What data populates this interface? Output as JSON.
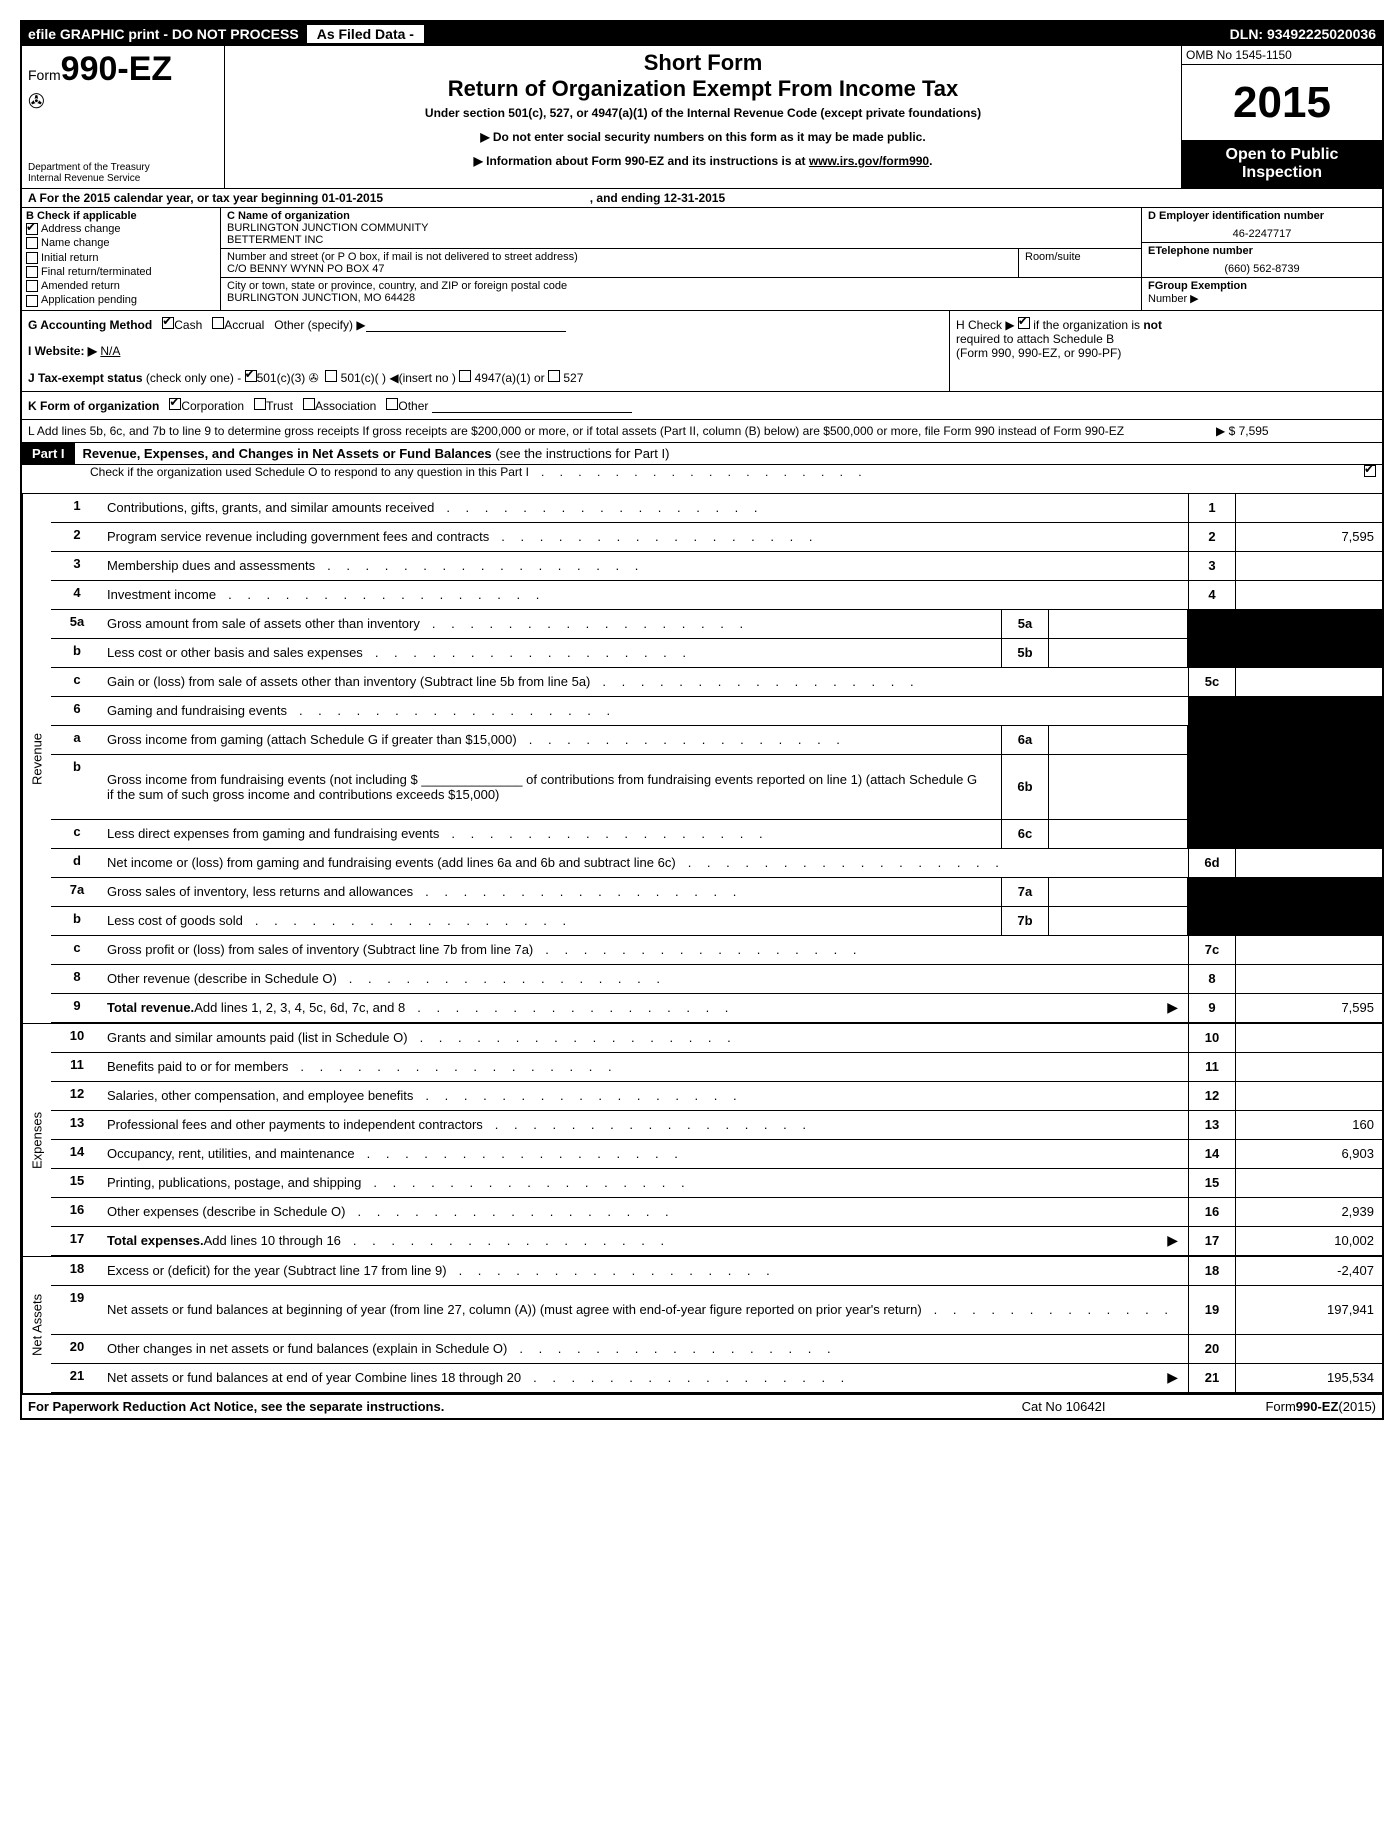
{
  "topbar": {
    "efile": "efile GRAPHIC print - DO NOT PROCESS",
    "asfiled": "As Filed Data -",
    "dln": "DLN: 93492225020036"
  },
  "header": {
    "form_prefix": "Form",
    "form_num": "990-EZ",
    "dept1": "Department of the Treasury",
    "dept2": "Internal Revenue Service",
    "short_form": "Short Form",
    "main_title": "Return of Organization Exempt From Income Tax",
    "under": "Under section 501(c), 527, or 4947(a)(1) of the Internal Revenue Code (except private foundations)",
    "inst1": "▶ Do not enter social security numbers on this form as it may be made public.",
    "inst2_pre": "▶ Information about Form 990-EZ and its instructions is at ",
    "inst2_link": "www.irs.gov/form990",
    "inst2_post": ".",
    "omb": "OMB No 1545-1150",
    "year": "2015",
    "open1": "Open to Public",
    "open2": "Inspection"
  },
  "rowA": {
    "text_pre": "A  For the 2015 calendar year, or tax year beginning ",
    "begin": "01-01-2015",
    "text_mid": " , and ending ",
    "end": "12-31-2015"
  },
  "colB": {
    "header": "B  Check if applicable",
    "items": [
      "Address change",
      "Name change",
      "Initial return",
      "Final return/terminated",
      "Amended return",
      "Application pending"
    ],
    "checked": [
      true,
      false,
      false,
      false,
      false,
      false
    ]
  },
  "colC": {
    "name_label": "C Name of organization",
    "name1": "BURLINGTON JUNCTION COMMUNITY",
    "name2": "BETTERMENT INC",
    "street_label": "Number and street (or P O box, if mail is not delivered to street address)",
    "room_label": "Room/suite",
    "street": "C/O BENNY WYNN PO BOX 47",
    "city_label": "City or town, state or province, country, and ZIP or foreign postal code",
    "city": "BURLINGTON JUNCTION, MO  64428"
  },
  "colD": {
    "d_label": "D Employer identification number",
    "ein": "46-2247717",
    "e_label": "ETelephone number",
    "phone": "(660) 562-8739",
    "f_label": "FGroup Exemption",
    "f_label2": "Number   ▶"
  },
  "rowG": {
    "g_label": "G Accounting Method",
    "cash": "Cash",
    "accrual": "Accrual",
    "other": "Other (specify) ▶",
    "i_label": "I Website: ▶",
    "website": "N/A",
    "j_label": "J Tax-exempt status",
    "j_text": "(check only one) -",
    "j_501c3": "501(c)(3)",
    "j_501c": "501(c)(  )",
    "j_insert": "◀(insert no )",
    "j_4947": "4947(a)(1) or",
    "j_527": "527"
  },
  "rowH": {
    "text1": "H  Check ▶",
    "text2": "if the organization is",
    "not": "not",
    "text3": "required to attach Schedule B",
    "text4": "(Form 990, 990-EZ, or 990-PF)"
  },
  "rowK": "K Form of organization",
  "rowK_items": [
    "Corporation",
    "Trust",
    "Association",
    "Other"
  ],
  "rowL": {
    "text": "L Add lines 5b, 6c, and 7b to line 9 to determine gross receipts If gross receipts are $200,000 or more, or if total assets (Part II, column (B) below) are $500,000 or more, file Form 990 instead of Form 990-EZ",
    "amount": "▶ $ 7,595"
  },
  "part1": {
    "label": "Part I",
    "title": "Revenue, Expenses, and Changes in Net Assets or Fund Balances",
    "subtitle": "(see the instructions for Part I)",
    "schedO": "Check if the organization used Schedule O to respond to any question in this Part I"
  },
  "sections": {
    "revenue": "Revenue",
    "expenses": "Expenses",
    "netassets": "Net Assets"
  },
  "lines": {
    "1": {
      "d": "Contributions, gifts, grants, and similar amounts received",
      "rn": "1",
      "v": ""
    },
    "2": {
      "d": "Program service revenue including government fees and contracts",
      "rn": "2",
      "v": "7,595"
    },
    "3": {
      "d": "Membership dues and assessments",
      "rn": "3",
      "v": ""
    },
    "4": {
      "d": "Investment income",
      "rn": "4",
      "v": ""
    },
    "5a": {
      "d": "Gross amount from sale of assets other than inventory",
      "mn": "5a"
    },
    "5b": {
      "d": "Less  cost or other basis and sales expenses",
      "mn": "5b"
    },
    "5c": {
      "d": "Gain or (loss) from sale of assets other than inventory (Subtract line 5b from line 5a)",
      "rn": "5c",
      "v": ""
    },
    "6": {
      "d": "Gaming and fundraising events"
    },
    "6a": {
      "d": "Gross income from gaming (attach Schedule G if greater than $15,000)",
      "mn": "6a"
    },
    "6b": {
      "d": "Gross income from fundraising events (not including $ ______________ of contributions from fundraising events reported on line 1) (attach Schedule G if the sum of such gross income and contributions exceeds $15,000)",
      "mn": "6b"
    },
    "6c": {
      "d": "Less  direct expenses from gaming and fundraising events",
      "mn": "6c"
    },
    "6d": {
      "d": "Net income or (loss) from gaming and fundraising events (add lines 6a and 6b and subtract line 6c)",
      "rn": "6d",
      "v": ""
    },
    "7a": {
      "d": "Gross sales of inventory, less returns and allowances",
      "mn": "7a"
    },
    "7b": {
      "d": "Less  cost of goods sold",
      "mn": "7b"
    },
    "7c": {
      "d": "Gross profit or (loss) from sales of inventory (Subtract line 7b from line 7a)",
      "rn": "7c",
      "v": ""
    },
    "8": {
      "d": "Other revenue (describe in Schedule O)",
      "rn": "8",
      "v": ""
    },
    "9": {
      "d": "Total revenue. ",
      "d2": "Add lines 1, 2, 3, 4, 5c, 6d, 7c, and 8",
      "rn": "9",
      "v": "7,595",
      "arrow": true,
      "bold": true
    },
    "10": {
      "d": "Grants and similar amounts paid (list in Schedule O)",
      "rn": "10",
      "v": ""
    },
    "11": {
      "d": "Benefits paid to or for members",
      "rn": "11",
      "v": ""
    },
    "12": {
      "d": "Salaries, other compensation, and employee benefits",
      "rn": "12",
      "v": ""
    },
    "13": {
      "d": "Professional fees and other payments to independent contractors",
      "rn": "13",
      "v": "160"
    },
    "14": {
      "d": "Occupancy, rent, utilities, and maintenance",
      "rn": "14",
      "v": "6,903"
    },
    "15": {
      "d": "Printing, publications, postage, and shipping",
      "rn": "15",
      "v": ""
    },
    "16": {
      "d": "Other expenses (describe in Schedule O)",
      "rn": "16",
      "v": "2,939"
    },
    "17": {
      "d": "Total expenses. ",
      "d2": "Add lines 10 through 16",
      "rn": "17",
      "v": "10,002",
      "arrow": true,
      "bold": true
    },
    "18": {
      "d": "Excess or (deficit) for the year (Subtract line 17 from line 9)",
      "rn": "18",
      "v": "-2,407"
    },
    "19": {
      "d": "Net assets or fund balances at beginning of year (from line 27, column (A)) (must agree with end-of-year figure reported on prior year's return)",
      "rn": "19",
      "v": "197,941"
    },
    "20": {
      "d": "Other changes in net assets or fund balances (explain in Schedule O)",
      "rn": "20",
      "v": ""
    },
    "21": {
      "d": "Net assets or fund balances at end of year Combine lines 18 through 20",
      "rn": "21",
      "v": "195,534",
      "arrow": true
    }
  },
  "footer": {
    "left": "For Paperwork Reduction Act Notice, see the separate instructions.",
    "mid": "Cat No 10642I",
    "right_pre": "Form",
    "right_form": "990-EZ",
    "right_year": "(2015)"
  }
}
